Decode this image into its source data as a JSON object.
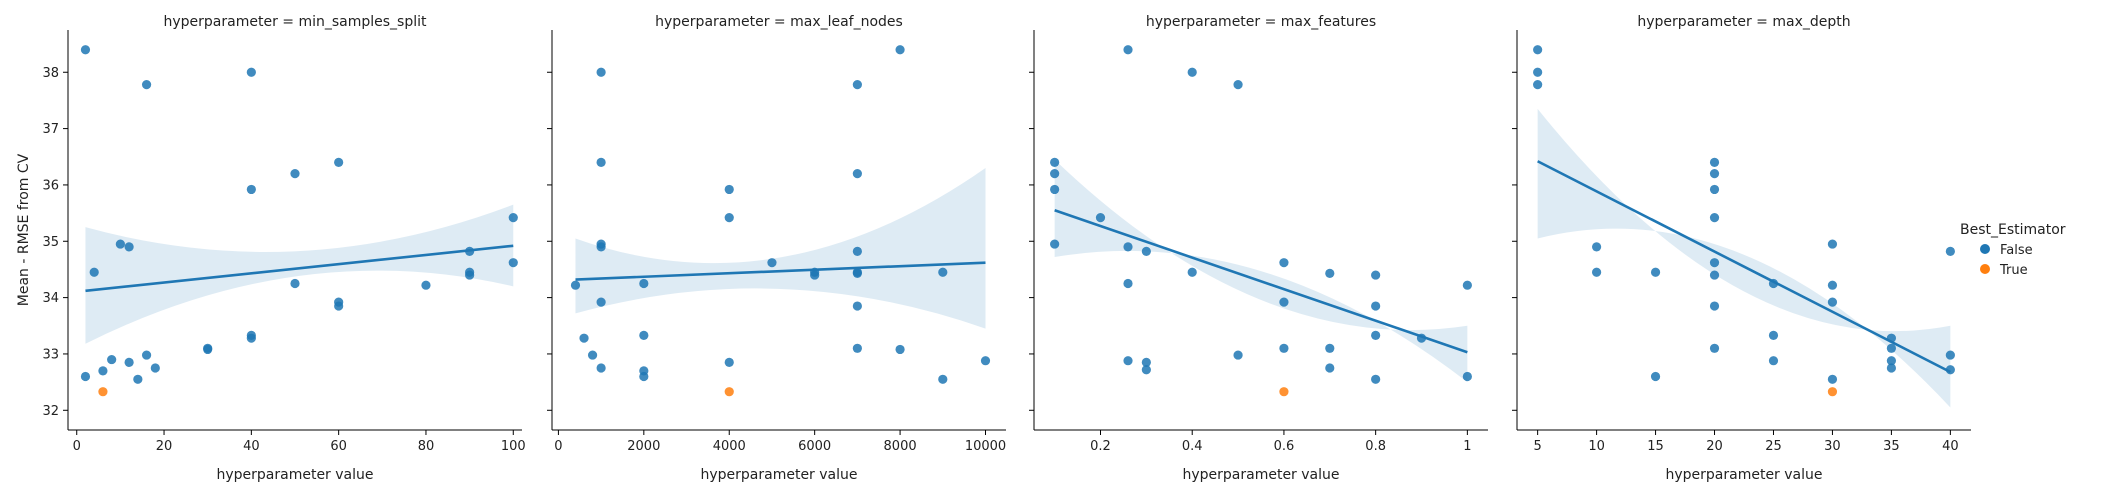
{
  "chart_data": [
    {
      "type": "scatter",
      "title": "hyperparameter = min_samples_split",
      "xlabel": "hyperparameter value",
      "ylabel": "Mean - RMSE from CV",
      "xlim": [
        -2,
        102
      ],
      "ylim": [
        31.65,
        38.75
      ],
      "xticks": [
        0,
        20,
        40,
        60,
        80,
        100
      ],
      "yticks": [
        32,
        33,
        34,
        35,
        36,
        37,
        38
      ],
      "regression": {
        "x": [
          2,
          100
        ],
        "y": [
          34.12,
          34.92
        ],
        "ci_lower": [
          33.18,
          34.2
        ],
        "ci_upper": [
          35.25,
          35.65
        ]
      },
      "points": [
        {
          "x": 2,
          "y": 38.4,
          "best": false
        },
        {
          "x": 2,
          "y": 32.6,
          "best": false
        },
        {
          "x": 4,
          "y": 34.45,
          "best": false
        },
        {
          "x": 6,
          "y": 32.7,
          "best": false
        },
        {
          "x": 8,
          "y": 32.9,
          "best": false
        },
        {
          "x": 10,
          "y": 34.95,
          "best": false
        },
        {
          "x": 12,
          "y": 34.9,
          "best": false
        },
        {
          "x": 12,
          "y": 32.85,
          "best": false
        },
        {
          "x": 14,
          "y": 32.55,
          "best": false
        },
        {
          "x": 16,
          "y": 37.78,
          "best": false
        },
        {
          "x": 16,
          "y": 32.98,
          "best": false
        },
        {
          "x": 18,
          "y": 32.75,
          "best": false
        },
        {
          "x": 30,
          "y": 33.1,
          "best": false
        },
        {
          "x": 30,
          "y": 33.08,
          "best": false
        },
        {
          "x": 40,
          "y": 38.0,
          "best": false
        },
        {
          "x": 40,
          "y": 35.92,
          "best": false
        },
        {
          "x": 40,
          "y": 33.33,
          "best": false
        },
        {
          "x": 40,
          "y": 33.28,
          "best": false
        },
        {
          "x": 50,
          "y": 36.2,
          "best": false
        },
        {
          "x": 50,
          "y": 34.25,
          "best": false
        },
        {
          "x": 60,
          "y": 36.4,
          "best": false
        },
        {
          "x": 60,
          "y": 33.92,
          "best": false
        },
        {
          "x": 60,
          "y": 33.85,
          "best": false
        },
        {
          "x": 80,
          "y": 34.22,
          "best": false
        },
        {
          "x": 90,
          "y": 34.82,
          "best": false
        },
        {
          "x": 90,
          "y": 34.45,
          "best": false
        },
        {
          "x": 90,
          "y": 34.4,
          "best": false
        },
        {
          "x": 100,
          "y": 35.42,
          "best": false
        },
        {
          "x": 100,
          "y": 34.62,
          "best": false
        },
        {
          "x": 6,
          "y": 32.33,
          "best": true
        }
      ]
    },
    {
      "type": "scatter",
      "title": "hyperparameter = max_leaf_nodes",
      "xlabel": "hyperparameter value",
      "ylabel": "",
      "xlim": [
        -150,
        10480
      ],
      "ylim": [
        31.65,
        38.75
      ],
      "xticks": [
        0,
        2000,
        4000,
        6000,
        8000,
        10000
      ],
      "yticks": [
        32,
        33,
        34,
        35,
        36,
        37,
        38
      ],
      "regression": {
        "x": [
          400,
          10000
        ],
        "y": [
          34.32,
          34.62
        ],
        "ci_lower": [
          33.72,
          33.45
        ],
        "ci_upper": [
          35.05,
          36.3
        ]
      },
      "points": [
        {
          "x": 400,
          "y": 34.22,
          "best": false
        },
        {
          "x": 600,
          "y": 33.28,
          "best": false
        },
        {
          "x": 800,
          "y": 32.98,
          "best": false
        },
        {
          "x": 1000,
          "y": 38.0,
          "best": false
        },
        {
          "x": 1000,
          "y": 36.4,
          "best": false
        },
        {
          "x": 1000,
          "y": 34.95,
          "best": false
        },
        {
          "x": 1000,
          "y": 34.9,
          "best": false
        },
        {
          "x": 1000,
          "y": 33.92,
          "best": false
        },
        {
          "x": 1000,
          "y": 32.75,
          "best": false
        },
        {
          "x": 2000,
          "y": 34.25,
          "best": false
        },
        {
          "x": 2000,
          "y": 33.33,
          "best": false
        },
        {
          "x": 2000,
          "y": 32.7,
          "best": false
        },
        {
          "x": 2000,
          "y": 32.6,
          "best": false
        },
        {
          "x": 4000,
          "y": 35.92,
          "best": false
        },
        {
          "x": 4000,
          "y": 35.42,
          "best": false
        },
        {
          "x": 4000,
          "y": 32.85,
          "best": false
        },
        {
          "x": 5000,
          "y": 34.62,
          "best": false
        },
        {
          "x": 6000,
          "y": 34.45,
          "best": false
        },
        {
          "x": 6000,
          "y": 34.4,
          "best": false
        },
        {
          "x": 7000,
          "y": 37.78,
          "best": false
        },
        {
          "x": 7000,
          "y": 36.2,
          "best": false
        },
        {
          "x": 7000,
          "y": 34.82,
          "best": false
        },
        {
          "x": 7000,
          "y": 34.45,
          "best": false
        },
        {
          "x": 7000,
          "y": 34.43,
          "best": false
        },
        {
          "x": 7000,
          "y": 33.85,
          "best": false
        },
        {
          "x": 7000,
          "y": 33.1,
          "best": false
        },
        {
          "x": 8000,
          "y": 38.4,
          "best": false
        },
        {
          "x": 8000,
          "y": 33.08,
          "best": false
        },
        {
          "x": 9000,
          "y": 34.45,
          "best": false
        },
        {
          "x": 9000,
          "y": 32.55,
          "best": false
        },
        {
          "x": 10000,
          "y": 32.88,
          "best": false
        },
        {
          "x": 4000,
          "y": 32.33,
          "best": true
        }
      ]
    },
    {
      "type": "scatter",
      "title": "hyperparameter = max_features",
      "xlabel": "hyperparameter value",
      "ylabel": "",
      "xlim": [
        0.055,
        1.045
      ],
      "ylim": [
        31.65,
        38.75
      ],
      "xticks": [
        0.2,
        0.4,
        0.6,
        0.8,
        1.0
      ],
      "yticks": [
        32,
        33,
        34,
        35,
        36,
        37,
        38
      ],
      "regression": {
        "x": [
          0.1,
          1.0
        ],
        "y": [
          35.55,
          33.03
        ],
        "ci_lower": [
          34.72,
          32.5
        ],
        "ci_upper": [
          36.45,
          33.5
        ]
      },
      "points": [
        {
          "x": 0.1,
          "y": 36.4,
          "best": false
        },
        {
          "x": 0.1,
          "y": 36.2,
          "best": false
        },
        {
          "x": 0.1,
          "y": 35.92,
          "best": false
        },
        {
          "x": 0.1,
          "y": 34.95,
          "best": false
        },
        {
          "x": 0.2,
          "y": 35.42,
          "best": false
        },
        {
          "x": 0.26,
          "y": 38.4,
          "best": false
        },
        {
          "x": 0.26,
          "y": 34.9,
          "best": false
        },
        {
          "x": 0.26,
          "y": 34.25,
          "best": false
        },
        {
          "x": 0.26,
          "y": 32.88,
          "best": false
        },
        {
          "x": 0.3,
          "y": 34.82,
          "best": false
        },
        {
          "x": 0.3,
          "y": 32.85,
          "best": false
        },
        {
          "x": 0.3,
          "y": 32.72,
          "best": false
        },
        {
          "x": 0.4,
          "y": 38.0,
          "best": false
        },
        {
          "x": 0.4,
          "y": 34.45,
          "best": false
        },
        {
          "x": 0.5,
          "y": 37.78,
          "best": false
        },
        {
          "x": 0.5,
          "y": 32.98,
          "best": false
        },
        {
          "x": 0.6,
          "y": 34.62,
          "best": false
        },
        {
          "x": 0.6,
          "y": 33.92,
          "best": false
        },
        {
          "x": 0.6,
          "y": 33.1,
          "best": false
        },
        {
          "x": 0.7,
          "y": 34.43,
          "best": false
        },
        {
          "x": 0.7,
          "y": 33.1,
          "best": false
        },
        {
          "x": 0.7,
          "y": 32.75,
          "best": false
        },
        {
          "x": 0.8,
          "y": 34.4,
          "best": false
        },
        {
          "x": 0.8,
          "y": 33.85,
          "best": false
        },
        {
          "x": 0.8,
          "y": 33.33,
          "best": false
        },
        {
          "x": 0.8,
          "y": 32.55,
          "best": false
        },
        {
          "x": 0.9,
          "y": 33.28,
          "best": false
        },
        {
          "x": 1.0,
          "y": 34.22,
          "best": false
        },
        {
          "x": 1.0,
          "y": 32.6,
          "best": false
        },
        {
          "x": 0.6,
          "y": 32.33,
          "best": true
        }
      ]
    },
    {
      "type": "scatter",
      "title": "hyperparameter = max_depth",
      "xlabel": "hyperparameter value",
      "ylabel": "",
      "xlim": [
        3.25,
        41.75
      ],
      "ylim": [
        31.65,
        38.75
      ],
      "xticks": [
        5,
        10,
        15,
        20,
        25,
        30,
        35,
        40
      ],
      "yticks": [
        32,
        33,
        34,
        35,
        36,
        37,
        38
      ],
      "regression": {
        "x": [
          5,
          40
        ],
        "y": [
          36.42,
          32.68
        ],
        "ci_lower": [
          35.05,
          32.05
        ],
        "ci_upper": [
          37.35,
          33.5
        ]
      },
      "points": [
        {
          "x": 5,
          "y": 38.4,
          "best": false
        },
        {
          "x": 5,
          "y": 38.0,
          "best": false
        },
        {
          "x": 5,
          "y": 37.78,
          "best": false
        },
        {
          "x": 10,
          "y": 34.9,
          "best": false
        },
        {
          "x": 10,
          "y": 34.45,
          "best": false
        },
        {
          "x": 15,
          "y": 34.45,
          "best": false
        },
        {
          "x": 15,
          "y": 32.6,
          "best": false
        },
        {
          "x": 20,
          "y": 36.4,
          "best": false
        },
        {
          "x": 20,
          "y": 36.2,
          "best": false
        },
        {
          "x": 20,
          "y": 35.92,
          "best": false
        },
        {
          "x": 20,
          "y": 35.42,
          "best": false
        },
        {
          "x": 20,
          "y": 34.62,
          "best": false
        },
        {
          "x": 20,
          "y": 34.4,
          "best": false
        },
        {
          "x": 20,
          "y": 33.85,
          "best": false
        },
        {
          "x": 20,
          "y": 33.1,
          "best": false
        },
        {
          "x": 25,
          "y": 34.25,
          "best": false
        },
        {
          "x": 25,
          "y": 33.33,
          "best": false
        },
        {
          "x": 25,
          "y": 32.88,
          "best": false
        },
        {
          "x": 30,
          "y": 34.95,
          "best": false
        },
        {
          "x": 30,
          "y": 34.22,
          "best": false
        },
        {
          "x": 30,
          "y": 33.92,
          "best": false
        },
        {
          "x": 30,
          "y": 32.55,
          "best": false
        },
        {
          "x": 35,
          "y": 33.28,
          "best": false
        },
        {
          "x": 35,
          "y": 33.1,
          "best": false
        },
        {
          "x": 35,
          "y": 32.88,
          "best": false
        },
        {
          "x": 35,
          "y": 32.75,
          "best": false
        },
        {
          "x": 40,
          "y": 34.82,
          "best": false
        },
        {
          "x": 40,
          "y": 32.98,
          "best": false
        },
        {
          "x": 40,
          "y": 32.72,
          "best": false
        },
        {
          "x": 30,
          "y": 32.33,
          "best": true
        }
      ]
    }
  ],
  "legend": {
    "title": "Best_Estimator",
    "placement": "right",
    "entries": [
      {
        "label": "False",
        "color": "#1f77b4"
      },
      {
        "label": "True",
        "color": "#ff7f0e"
      }
    ]
  },
  "colors": {
    "false_points": "#1f77b4",
    "true_points": "#ff7f0e",
    "regression_line": "#1f77b4",
    "ci_band": "#1f77b4"
  }
}
